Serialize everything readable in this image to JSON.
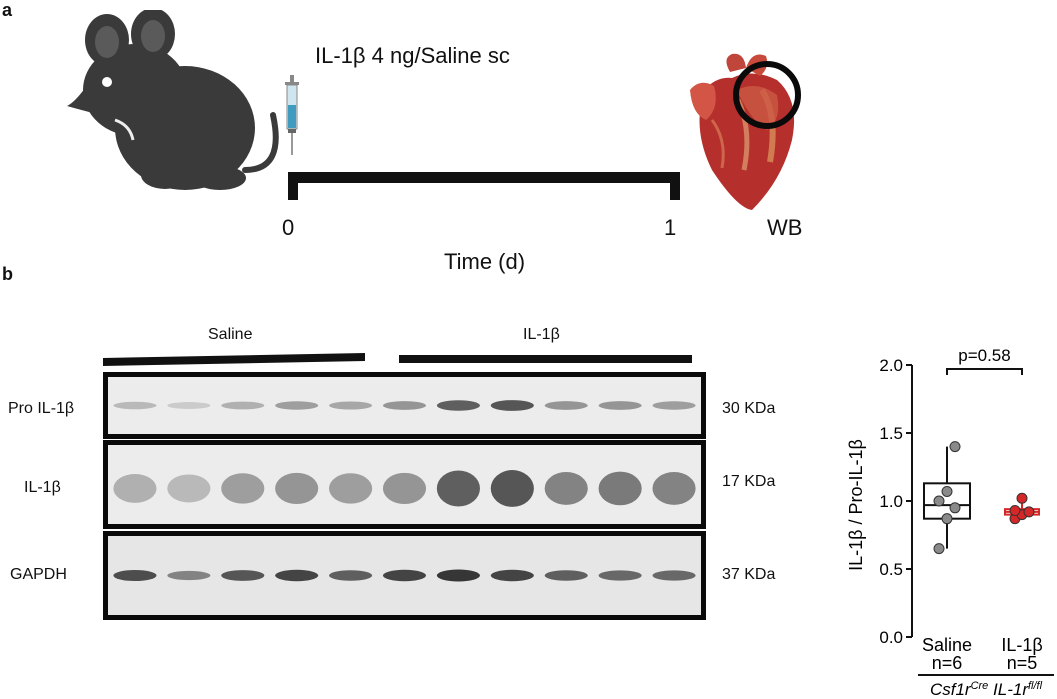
{
  "panel_a": {
    "letter": "a",
    "treatment": "IL-1β  4 ng/Saline sc",
    "time_start": "0",
    "time_end": "1",
    "time_axis_label": "Time (d)",
    "endpoint": "WB"
  },
  "panel_b": {
    "letter": "b",
    "groups": [
      "Saline",
      "IL-1β"
    ],
    "blots": [
      {
        "label": "Pro IL-1β",
        "size": "30 KDa",
        "intensities": [
          0.25,
          0.15,
          0.3,
          0.4,
          0.35,
          0.45,
          0.75,
          0.8,
          0.45,
          0.45,
          0.4
        ]
      },
      {
        "label": "IL-1β",
        "size": "17 KDa",
        "intensities": [
          0.3,
          0.25,
          0.4,
          0.45,
          0.4,
          0.45,
          0.75,
          0.8,
          0.55,
          0.6,
          0.55
        ]
      },
      {
        "label": "GAPDH",
        "size": "37 KDa",
        "intensities": [
          0.85,
          0.55,
          0.8,
          0.9,
          0.75,
          0.9,
          0.98,
          0.9,
          0.75,
          0.7,
          0.7
        ]
      }
    ]
  },
  "chart_data": {
    "type": "box",
    "ylabel": "IL-1β / Pro-IL-1β",
    "ylim": [
      0,
      2.0
    ],
    "yticks": [
      "0.0",
      "0.5",
      "1.0",
      "1.5",
      "2.0"
    ],
    "categories": [
      "Saline",
      "IL-1β"
    ],
    "n_labels": [
      "n=6",
      "n=5"
    ],
    "genotype_prefix": "Csf1r",
    "genotype_sup1": "Cre",
    "genotype_mid": " IL-1r",
    "genotype_sup2": "fl/fl",
    "annotation": "p=0.58",
    "colors": {
      "Saline": "#111111",
      "IL-1β": "#d62728"
    },
    "series": [
      {
        "name": "Saline",
        "box": {
          "q1": 0.87,
          "median": 0.97,
          "q3": 1.13,
          "min": 0.65,
          "max": 1.4
        },
        "points": [
          0.65,
          0.87,
          0.95,
          1.0,
          1.07,
          1.4
        ]
      },
      {
        "name": "IL-1β",
        "box": {
          "q1": 0.9,
          "median": 0.92,
          "q3": 0.94,
          "min": 0.87,
          "max": 1.02
        },
        "points": [
          0.87,
          0.9,
          0.92,
          0.93,
          1.02
        ]
      }
    ]
  }
}
